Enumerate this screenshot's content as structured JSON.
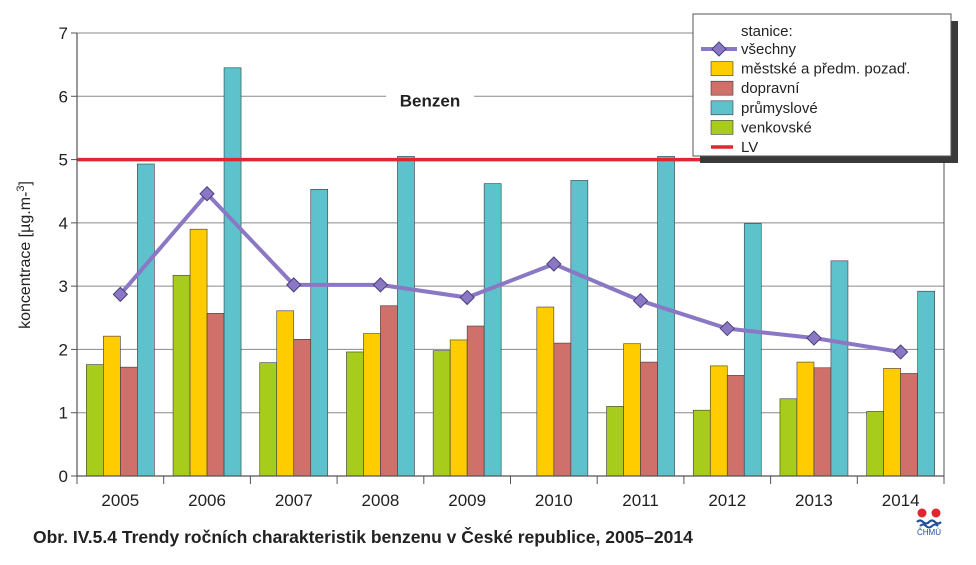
{
  "chart_data": {
    "type": "bar",
    "title": "Benzen",
    "ylabel": "koncentrace [µg.m⁻³]",
    "xlabel": "",
    "ylim": [
      0,
      7
    ],
    "yticks": [
      0,
      1,
      2,
      3,
      4,
      5,
      6,
      7
    ],
    "grid": true,
    "legend_position": "top-right",
    "legend_title": "stanice:",
    "categories": [
      "2005",
      "2006",
      "2007",
      "2008",
      "2009",
      "2010",
      "2011",
      "2012",
      "2013",
      "2014"
    ],
    "series": [
      {
        "name": "venkovské",
        "kind": "bar",
        "color": "#a8cc1c",
        "values": [
          1.76,
          3.17,
          1.79,
          1.96,
          1.98,
          null,
          1.1,
          1.04,
          1.22,
          1.02
        ]
      },
      {
        "name": "městské a předm. pozaď.",
        "kind": "bar",
        "color": "#ffcc00",
        "values": [
          2.21,
          3.9,
          2.61,
          2.25,
          2.15,
          2.67,
          2.09,
          1.74,
          1.8,
          1.7
        ]
      },
      {
        "name": "dopravní",
        "kind": "bar",
        "color": "#d0706a",
        "values": [
          1.72,
          2.57,
          2.16,
          2.69,
          2.37,
          2.1,
          1.8,
          1.59,
          1.71,
          1.62
        ]
      },
      {
        "name": "průmyslové",
        "kind": "bar",
        "color": "#5ec2cc",
        "values": [
          4.93,
          6.45,
          4.53,
          5.05,
          4.62,
          4.67,
          5.05,
          3.99,
          3.4,
          2.92
        ]
      },
      {
        "name": "všechny",
        "kind": "line",
        "color": "#8b78c4",
        "values": [
          2.87,
          4.46,
          3.02,
          3.02,
          2.82,
          3.35,
          2.77,
          2.33,
          2.18,
          1.96
        ]
      }
    ],
    "reference_line": {
      "name": "LV",
      "value": 5,
      "color": "#e0262f"
    },
    "legend_order": [
      "všechny",
      "městské a předm. pozaď.",
      "dopravní",
      "průmyslové",
      "venkovské",
      "LV"
    ]
  },
  "caption": "Obr. IV.5.4  Trendy ročních charakteristik benzenu v České republice, 2005–2014",
  "logo_text": "ČHMÚ"
}
